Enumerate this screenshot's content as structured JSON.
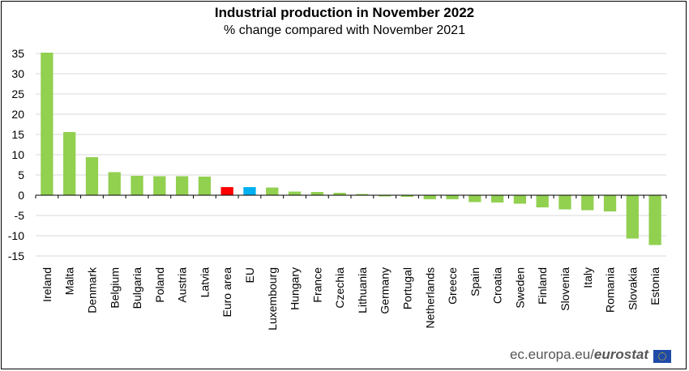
{
  "chart_data": {
    "type": "bar",
    "title": "Industrial production in November 2022",
    "subtitle": "% change compared with November 2021",
    "categories": [
      "Ireland",
      "Malta",
      "Denmark",
      "Belgium",
      "Bulgaria",
      "Poland",
      "Austria",
      "Latvia",
      "Euro area",
      "EU",
      "Luxembourg",
      "Hungary",
      "France",
      "Czechia",
      "Lithuania",
      "Germany",
      "Portugal",
      "Netherlands",
      "Greece",
      "Spain",
      "Croatia",
      "Sweden",
      "Finland",
      "Slovenia",
      "Italy",
      "Romania",
      "Slovakia",
      "Estonia"
    ],
    "values": [
      35.2,
      15.6,
      9.4,
      5.7,
      4.8,
      4.7,
      4.7,
      4.6,
      2.0,
      2.0,
      1.9,
      0.9,
      0.8,
      0.6,
      0.3,
      -0.3,
      -0.4,
      -1.0,
      -1.0,
      -1.7,
      -1.8,
      -2.1,
      -3.0,
      -3.5,
      -3.7,
      -4.0,
      -10.7,
      -12.3
    ],
    "ylim": [
      -15,
      35
    ],
    "yticks": [
      35,
      30,
      25,
      20,
      15,
      10,
      5,
      0,
      -5,
      -10,
      -15
    ],
    "grid": true,
    "colors": {
      "default": "#92d050",
      "Euro area": "#ff0000",
      "EU": "#00b0f0"
    }
  },
  "footer": {
    "source_prefix": "ec.europa.eu/",
    "source_brand": "eurostat"
  }
}
